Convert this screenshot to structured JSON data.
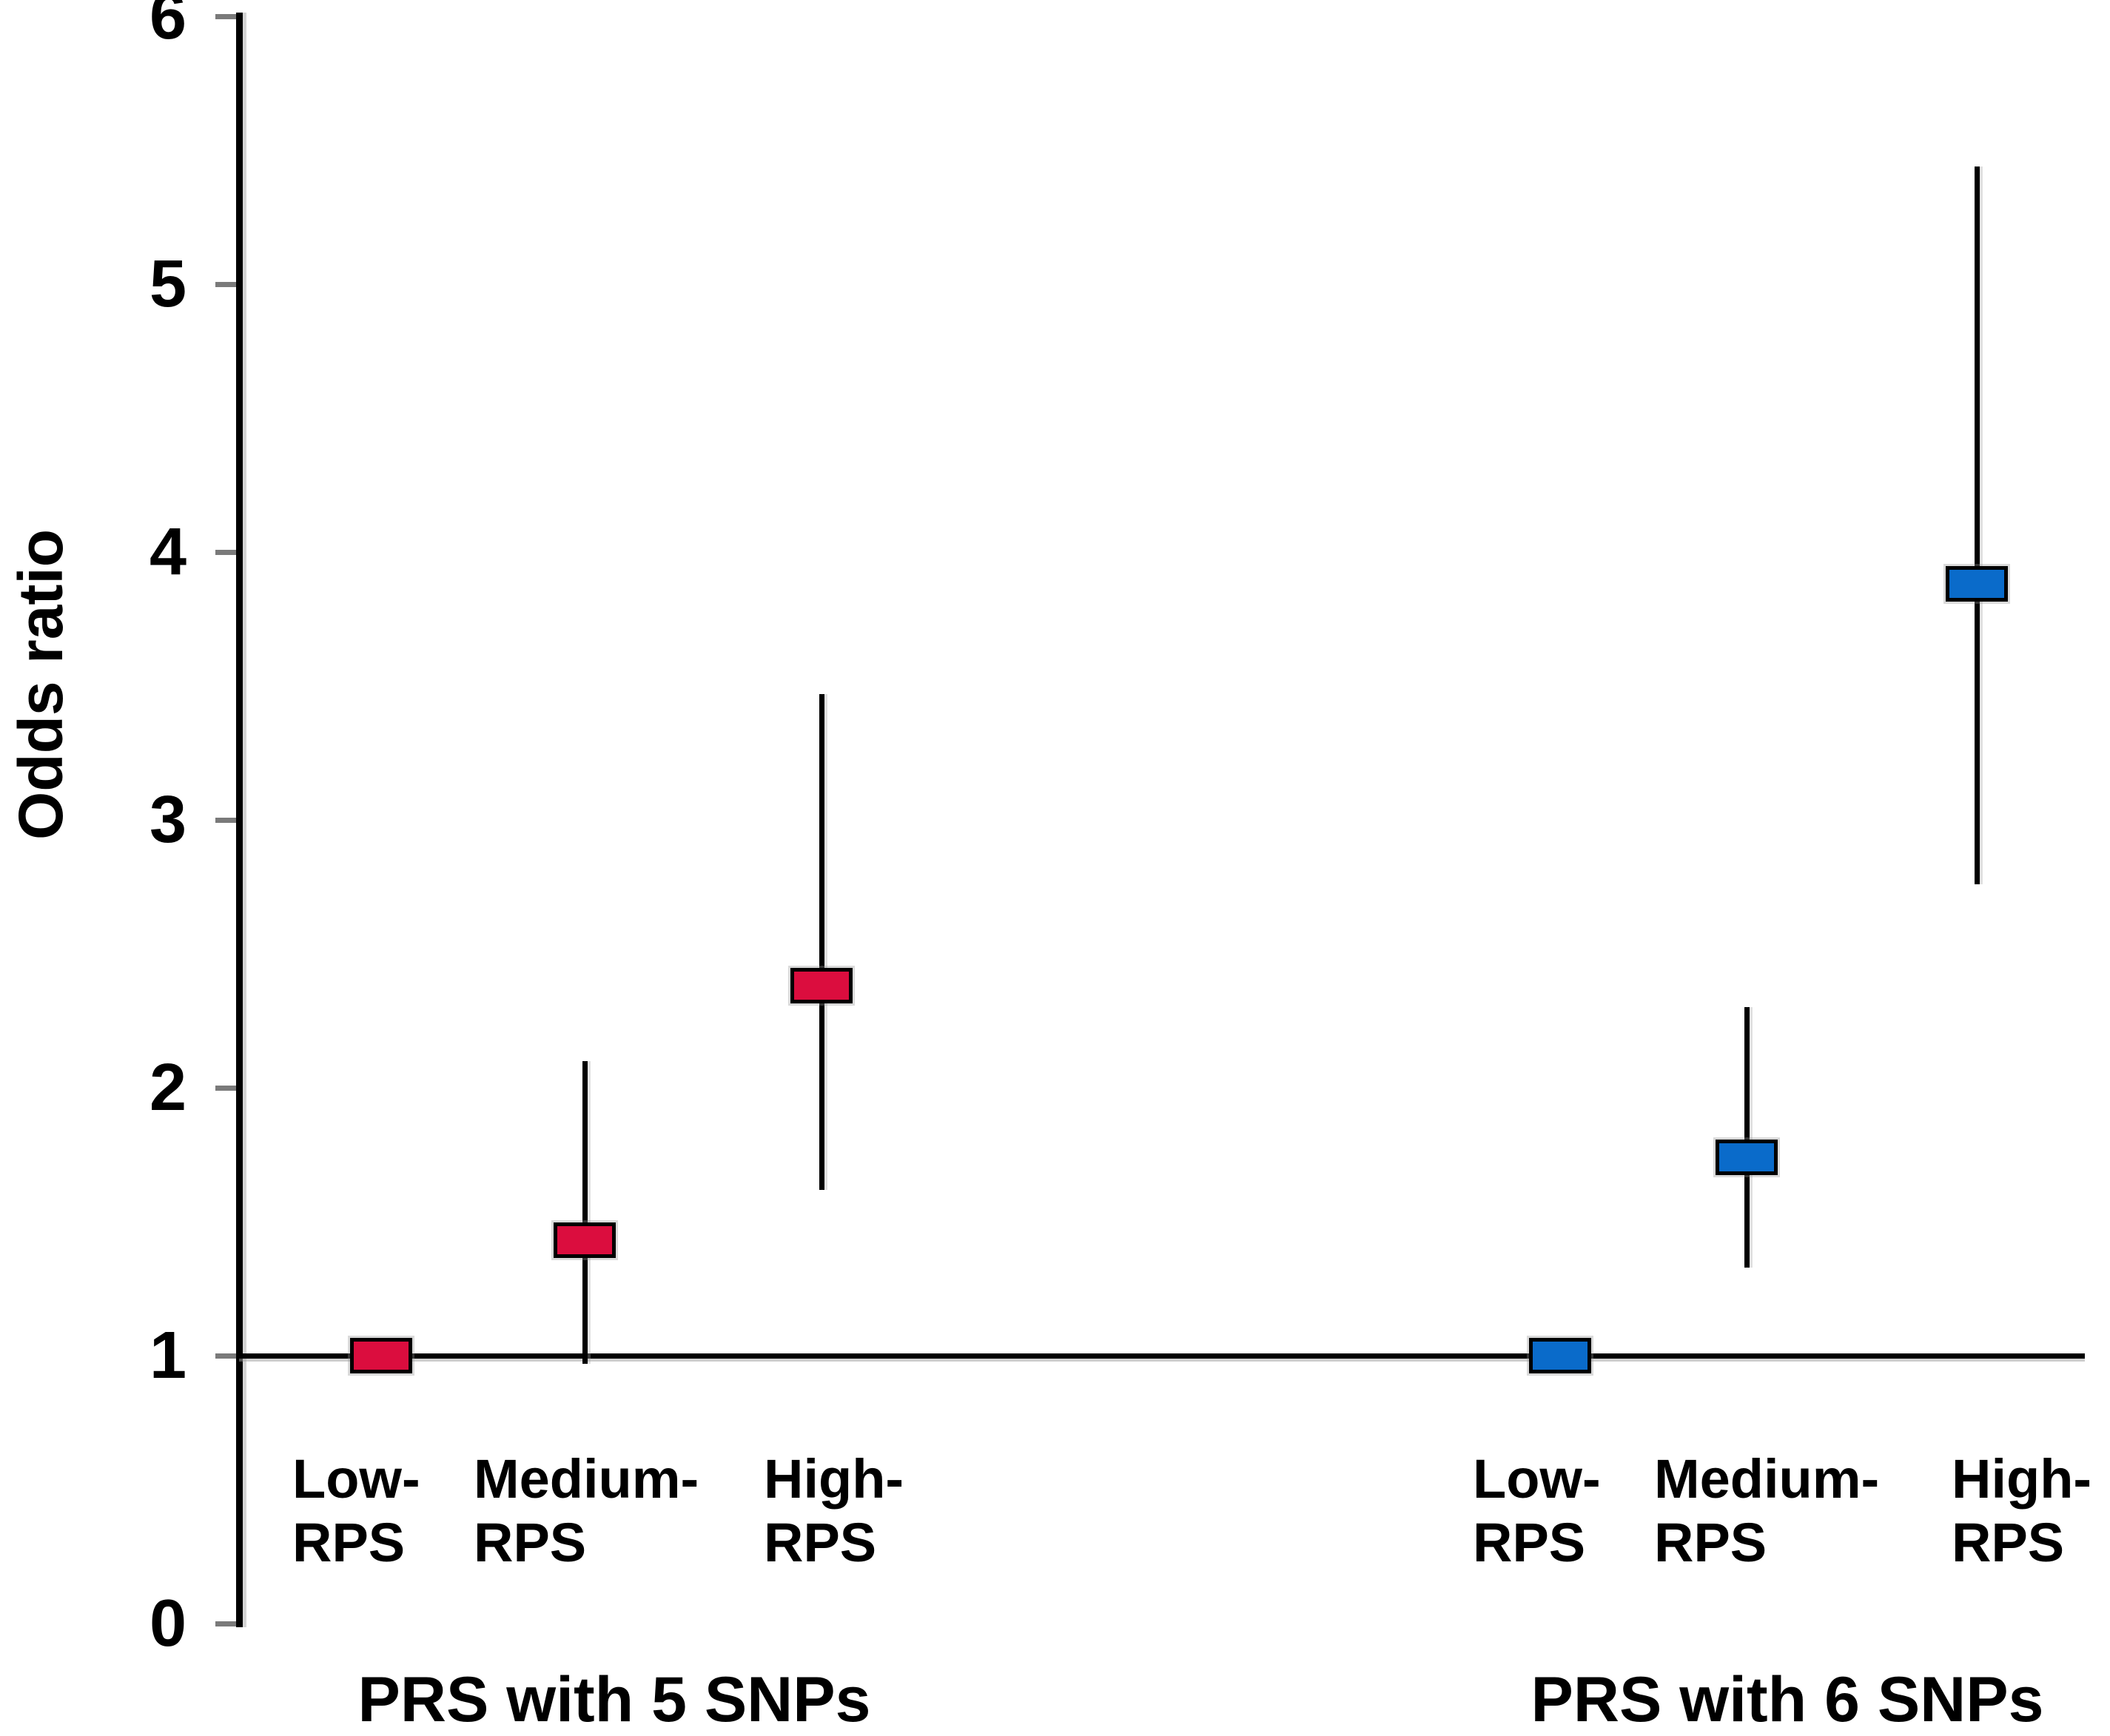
{
  "figure": {
    "ylabel": "Odds ratio",
    "y_tick_labels": [
      "0",
      "1",
      "2",
      "3",
      "4",
      "5",
      "6"
    ]
  },
  "chart_data": {
    "type": "scatter",
    "subtype": "forest-plot-odds-ratio-with-ci",
    "title": "",
    "xlabel": "",
    "ylabel": "Odds ratio",
    "ylim": [
      0,
      6
    ],
    "yticks": [
      0,
      1,
      2,
      3,
      4,
      5,
      6
    ],
    "grid": false,
    "legend": "none",
    "reference_line_y": 1,
    "categories": [
      "Low-RPS",
      "Medium-RPS",
      "High-RPS"
    ],
    "category_display_lines": [
      "Low-\nRPS",
      "Medium-\nRPS",
      "High-\nRPS"
    ],
    "series": [
      {
        "name": "PRS with 5 SNPs",
        "color": "#DB0D3E",
        "points": [
          {
            "category": "Low-RPS",
            "odds_ratio": 1.0,
            "ci_low": null,
            "ci_high": null
          },
          {
            "category": "Medium-RPS",
            "odds_ratio": 1.43,
            "ci_low": 0.97,
            "ci_high": 2.1
          },
          {
            "category": "High-RPS",
            "odds_ratio": 2.38,
            "ci_low": 1.62,
            "ci_high": 3.47
          }
        ]
      },
      {
        "name": "PRS with 6 SNPs",
        "color": "#0A6BCA",
        "points": [
          {
            "category": "Low-RPS",
            "odds_ratio": 1.0,
            "ci_low": null,
            "ci_high": null
          },
          {
            "category": "Medium-RPS",
            "odds_ratio": 1.74,
            "ci_low": 1.33,
            "ci_high": 2.3
          },
          {
            "category": "High-RPS",
            "odds_ratio": 3.88,
            "ci_low": 2.76,
            "ci_high": 5.44
          }
        ]
      }
    ]
  }
}
